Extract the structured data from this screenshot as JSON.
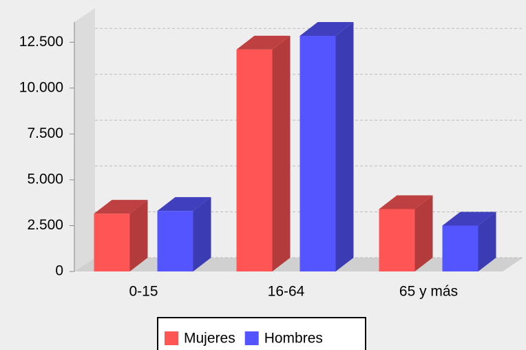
{
  "chart_data": {
    "type": "bar3d",
    "categories": [
      "0-15",
      "16-64",
      "65 y más"
    ],
    "series": [
      {
        "name": "Mujeres",
        "color": "#ff5555",
        "values": [
          3150,
          12100,
          3400
        ]
      },
      {
        "name": "Hombres",
        "color": "#5555ff",
        "values": [
          3300,
          12850,
          2500
        ]
      }
    ],
    "ylim": [
      0,
      13600
    ],
    "yticks": [
      0,
      {
        "value": 2500,
        "label": "2.500"
      },
      {
        "value": 5000,
        "label": "5.000"
      },
      {
        "value": 7500,
        "label": "7.500"
      },
      {
        "value": 10000,
        "label": "10.000"
      },
      {
        "value": 12500,
        "label": "12.500"
      }
    ],
    "grid": true,
    "legend": "bottom"
  }
}
